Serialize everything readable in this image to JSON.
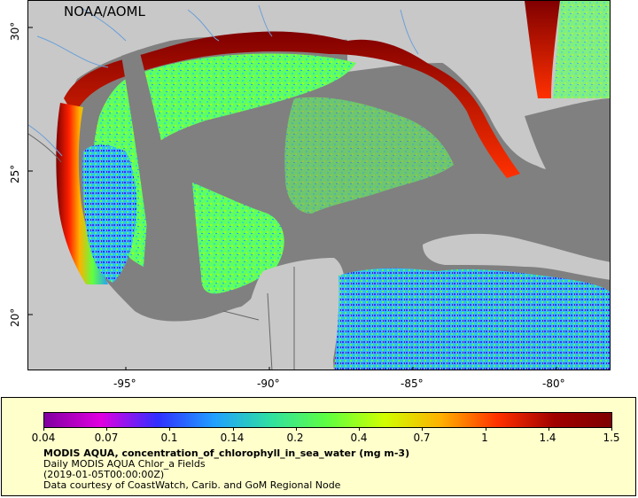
{
  "map": {
    "credit": "NOAA/AOML",
    "lat_ticks": [
      {
        "value": 30,
        "label": "30°"
      },
      {
        "value": 25,
        "label": "25°"
      },
      {
        "value": 20,
        "label": "20°"
      }
    ],
    "lon_ticks": [
      {
        "value": -95,
        "label": "-95°"
      },
      {
        "value": -90,
        "label": "-90°"
      },
      {
        "value": -85,
        "label": "-85°"
      },
      {
        "value": -80,
        "label": "-80°"
      }
    ],
    "colors": {
      "land": "#c8c8c8",
      "no_data": "#808080",
      "rivers": "#6a9fd8",
      "borders": "#666666"
    }
  },
  "legend": {
    "colorbar_ticks": [
      "0.04",
      "0.07",
      "0.1",
      "0.14",
      "0.2",
      "0.4",
      "0.7",
      "1",
      "1.4",
      "1.5"
    ],
    "title": "MODIS AQUA, concentration_of_chlorophyll_in_sea_water (mg m-3)",
    "subtitle": "Daily MODIS AQUA Chlor_a Fields",
    "date": "(2019-01-05T00:00:00Z)",
    "source": "Data courtesy of CoastWatch, Carib. and GoM Regional Node",
    "colormap": [
      "#8000a0",
      "#e000e0",
      "#3030ff",
      "#20a0ff",
      "#30e0a0",
      "#60ff40",
      "#d0ff00",
      "#ffb000",
      "#ff3000",
      "#a00000",
      "#800000"
    ]
  }
}
